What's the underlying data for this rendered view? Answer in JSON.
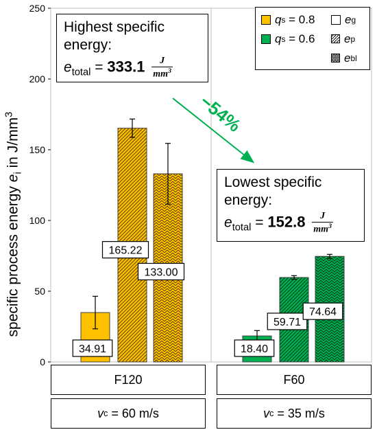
{
  "chart_data": {
    "type": "bar",
    "ylabel": "specific process energy",
    "ylabel_var": "e",
    "ylabel_sub": "i",
    "ylabel_unit": "in J/mm",
    "ylabel_unit_sup": "3",
    "ylim": [
      0,
      250
    ],
    "yticks": [
      "0",
      "50",
      "100",
      "150",
      "200",
      "250"
    ],
    "grid": false,
    "groups": [
      {
        "name": "F120",
        "speed_var": "v",
        "speed_sub": "c",
        "speed_text": " = 60 m/s",
        "color": "#FFC000",
        "bars": [
          {
            "component": "e_g",
            "value": 34.91,
            "err": 11.5,
            "label": "34.91"
          },
          {
            "component": "e_p",
            "value": 165.22,
            "err": 6.5,
            "label": "165.22"
          },
          {
            "component": "e_bl",
            "value": 133.0,
            "err": 21.5,
            "label": "133.00"
          }
        ]
      },
      {
        "name": "F60",
        "speed_var": "v",
        "speed_sub": "c",
        "speed_text": " = 35 m/s",
        "color": "#00B050",
        "bars": [
          {
            "component": "e_g",
            "value": 18.4,
            "err": 3.8,
            "label": "18.40"
          },
          {
            "component": "e_p",
            "value": 59.71,
            "err": 1.3,
            "label": "59.71"
          },
          {
            "component": "e_bl",
            "value": 74.64,
            "err": 1.4,
            "label": "74.64"
          }
        ]
      }
    ],
    "legend": {
      "placement": "top-right",
      "q_var": "q",
      "q_sub": "s",
      "q_high": " = 0.8",
      "q_low": " = 0.6",
      "e_var": "e",
      "e_g_sub": "g",
      "e_p_sub": "p",
      "e_bl_sub": "bl"
    },
    "annotations": {
      "highest_line1": "Highest specific",
      "highest_line2": "energy:",
      "highest_value": "333.1",
      "lowest_line1": "Lowest specific",
      "lowest_line2": "energy:",
      "lowest_value": "152.8",
      "total_var": "e",
      "total_sub": "total",
      "equals": " = ",
      "unit_num": "J",
      "unit_den": "mm",
      "unit_den_sup": "3",
      "reduction": "−54%",
      "reduction_color": "#00B050"
    }
  }
}
